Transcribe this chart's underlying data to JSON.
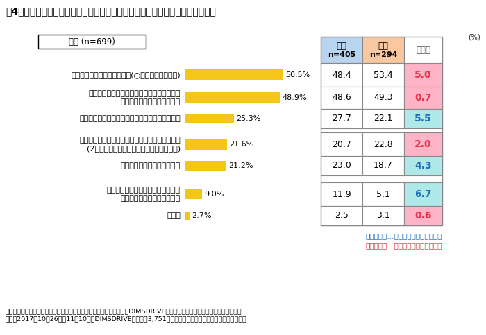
{
  "title": "表4　「ポイントカードを使う機会が増えた理由は何ですか」　についての回答",
  "subtitle_box": "全体 (n=699)",
  "categories": [
    "ポイントがたまりやすいから(○倍の日があるなど)",
    "一枚のカードでいくつものお店のポイントを\n兼用できるようになったから",
    "ポイントの使用が簡単にできるようになったから",
    "ポイントカードの併用ができるようになったから\n(2種類のポイントを同時にためられるなど)",
    "店員さんが尋ねてくれるから",
    "ポイントカードがスマホのアプリで\n持ち歩けるようになったから",
    "その他"
  ],
  "values": [
    50.5,
    48.9,
    25.3,
    21.6,
    21.2,
    9.0,
    2.7
  ],
  "male_values": [
    48.4,
    48.6,
    27.7,
    20.7,
    23.0,
    11.9,
    2.5
  ],
  "female_values": [
    53.4,
    49.3,
    22.1,
    22.8,
    18.7,
    5.1,
    3.1
  ],
  "diff_values": [
    "5.0",
    "0.7",
    "5.5",
    "2.0",
    "4.3",
    "6.7",
    "0.6"
  ],
  "diff_colors": [
    "pink",
    "pink",
    "cyan",
    "pink",
    "cyan",
    "cyan",
    "pink"
  ],
  "diff_text_colors": [
    "#e8334a",
    "#e8334a",
    "#1a6ebd",
    "#e8334a",
    "#1a6ebd",
    "#1a6ebd",
    "#e8334a"
  ],
  "bar_color": "#F5C518",
  "male_header_line1": "男性",
  "male_header_line2": "n=405",
  "female_header_line1": "女性",
  "female_header_line2": "n=294",
  "diff_header": "男女差",
  "pct_label": "(%)",
  "bar_max": 55,
  "male_bg": "#b8d4ee",
  "female_bg": "#f9c8a0",
  "pink_bg": "#ffb3c6",
  "cyan_bg": "#aee8e8",
  "footnote_line1": "男女差青字…男性のほうが数値が高い",
  "footnote_line2": "男女差赤字…女性のほうが数値が高い",
  "footnote_line1_color": "#1a6ebd",
  "footnote_line2_color": "#e8334a",
  "survey_note_line1": "調査機関：インターワイヤード株式会社が運営するネットリサーチ『DIMSDRIVE』実施のアンケート「ポイントカード」。",
  "survey_note_line2": "期間：2017年10月26日～11月10日、DIMSDRIVEモニター3,751人が回答。エピソードも同アンケートです。"
}
